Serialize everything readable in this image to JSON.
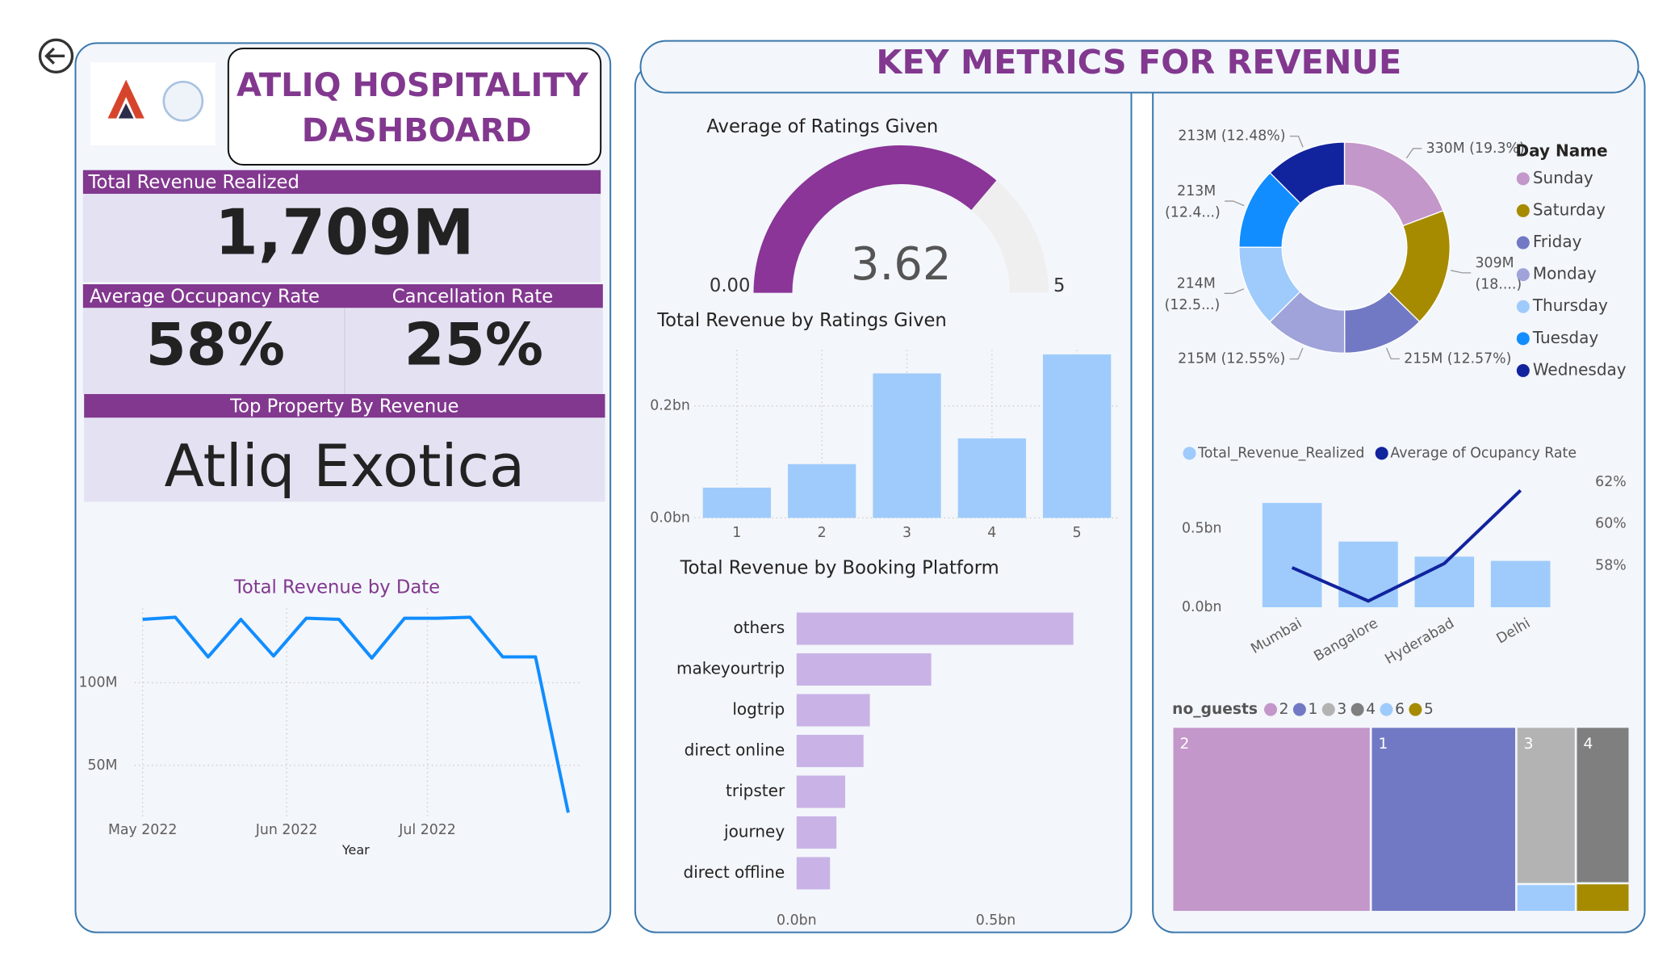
{
  "header": {
    "title_lines": [
      "ATLIQ HOSPITALITY",
      "DASHBOARD"
    ],
    "section_title": "KEY METRICS FOR REVENUE"
  },
  "kpis": [
    {
      "label": "Total Revenue Realized",
      "value": "1,709M"
    },
    {
      "label": "Average Occupancy Rate",
      "value": "58%"
    },
    {
      "label": "Cancellation Rate",
      "value": "25%"
    },
    {
      "label": "Top Property By Revenue",
      "value": "Atliq Exotica"
    }
  ],
  "chart_data": [
    {
      "type": "line",
      "title": "Total Revenue by Date",
      "x_label": "Year",
      "x": [
        19,
        20,
        21,
        22,
        23,
        24,
        25,
        26,
        27,
        28,
        29,
        30,
        31,
        32
      ],
      "values": [
        138.3,
        139.6,
        115.6,
        138.3,
        116.2,
        139,
        138.3,
        114.9,
        139,
        139,
        139.6,
        115.6,
        115.6,
        21.4
      ],
      "color": "#118dff",
      "xlim": [
        18.1,
        32.4
      ],
      "xticks": [
        {
          "value": 19,
          "label": "May 2022"
        },
        {
          "value": 23.4,
          "label": "Jun 2022"
        },
        {
          "value": 27.7,
          "label": "Jul 2022"
        }
      ],
      "ylim": [
        18,
        145
      ],
      "yticks": [
        {
          "value": 50,
          "label": "50M"
        },
        {
          "value": 100,
          "label": "100M"
        }
      ],
      "grid": true
    },
    {
      "type": "gauge",
      "title": "Average of Ratings Given",
      "value": 3.62,
      "ylim": [
        0,
        5
      ],
      "yticks": [
        {
          "value": 0,
          "label": "0.00"
        },
        5
      ],
      "color": "#8a3597",
      "track_color": "#efefef"
    },
    {
      "type": "bar",
      "title": "Total Revenue by Ratings Given",
      "categories": [
        "1",
        "2",
        "3",
        "4",
        "5"
      ],
      "values": [
        0.054,
        0.096,
        0.258,
        0.142,
        0.292
      ],
      "color": "#9ecbfb",
      "ylim": [
        0,
        0.3
      ],
      "yticks": [
        {
          "value": 0,
          "label": "0.0bn"
        },
        {
          "value": 0.2,
          "label": "0.2bn"
        }
      ],
      "grid": true
    },
    {
      "type": "hbar",
      "title": "Total Revenue by Booking Platform",
      "categories": [
        "others",
        "makeyourtrip",
        "logtrip",
        "direct online",
        "tripster",
        "journey",
        "direct offline"
      ],
      "values": [
        0.695,
        0.338,
        0.184,
        0.168,
        0.122,
        0.1,
        0.084
      ],
      "color": "#c9b3e6",
      "xlim": [
        0,
        0.8
      ],
      "xticks": [
        {
          "value": 0,
          "label": "0.0bn"
        },
        {
          "value": 0.5,
          "label": "0.5bn"
        }
      ]
    },
    {
      "type": "donut",
      "legend_title": "Day Name",
      "legend": "right",
      "categories": [
        "Sunday",
        "Saturday",
        "Friday",
        "Monday",
        "Thursday",
        "Tuesday",
        "Wednesday"
      ],
      "values": [
        330,
        309,
        215,
        215,
        214,
        213,
        213
      ],
      "value_labels": [
        "330M (19.3%)",
        "309M (18....)",
        "215M (12.57%)",
        "215M (12.55%)",
        "214M (12.5...)",
        "213M (12.4...)",
        "213M (12.48%)"
      ],
      "colors": [
        "#c397c9",
        "#a68b00",
        "#7279c4",
        "#a0a3d9",
        "#9ecbfb",
        "#118dff",
        "#12239e"
      ]
    },
    {
      "type": "combo",
      "legend": "top",
      "categories": [
        "Mumbai",
        "Bangalore",
        "Hyderabad",
        "Delhi"
      ],
      "series": [
        {
          "name": "Total_Revenue_Realized",
          "color": "#9ecbfb",
          "type": "bar",
          "values": [
            0.664,
            0.418,
            0.322,
            0.295
          ]
        },
        {
          "name": "Average of Ocupancy Rate",
          "color": "#12239e",
          "type": "line",
          "axis": "y2",
          "values": [
            57.9,
            56.3,
            58.1,
            61.6
          ]
        }
      ],
      "ylim": [
        0,
        0.85
      ],
      "yticks": [
        {
          "value": 0,
          "label": "0.0bn"
        },
        {
          "value": 0.5,
          "label": "0.5bn"
        }
      ],
      "y2lim": [
        56,
        62.4
      ],
      "y2ticks": [
        {
          "value": 58,
          "label": "58%"
        },
        {
          "value": 60,
          "label": "60%"
        },
        {
          "value": 62,
          "label": "62%"
        }
      ]
    },
    {
      "type": "treemap",
      "legend_title": "no_guests",
      "legend": "top",
      "categories": [
        "2",
        "1",
        "3",
        "4",
        "6",
        "5"
      ],
      "values": [
        31,
        22.7,
        7.9,
        7.1,
        1.4,
        1.3
      ],
      "colors": [
        "#c397c9",
        "#7279c4",
        "#b3b3b3",
        "#7f7f7f",
        "#9ecbfb",
        "#a68b00"
      ]
    }
  ]
}
